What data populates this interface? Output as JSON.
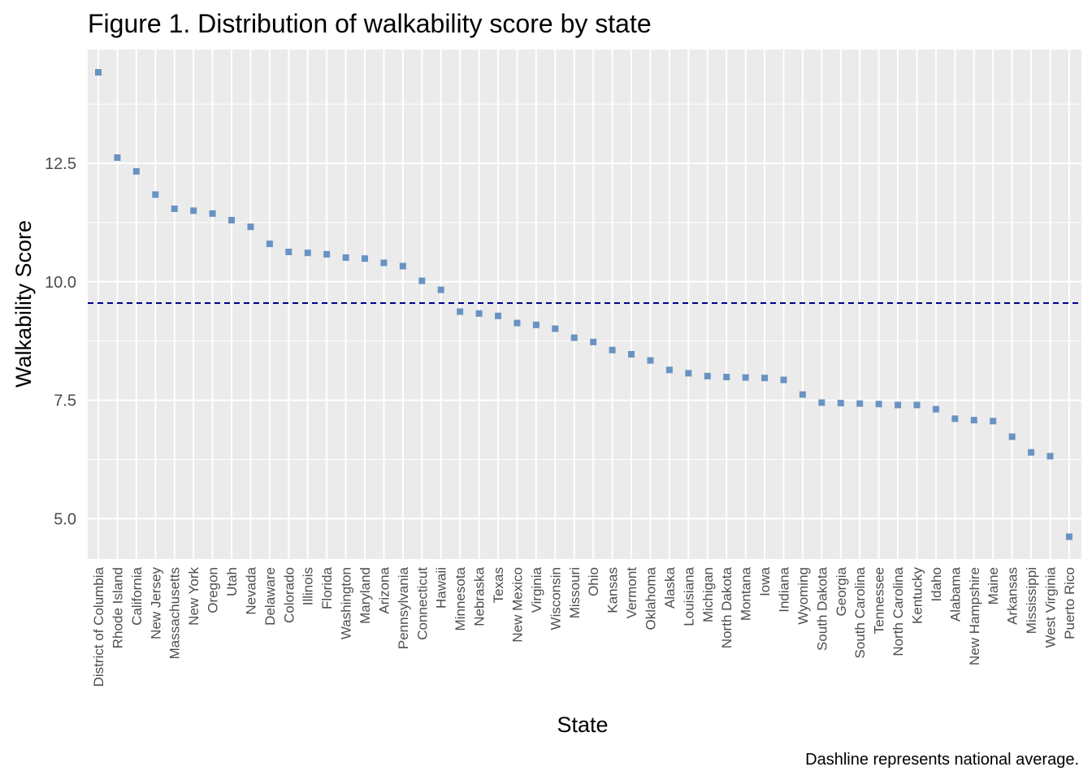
{
  "chart_data": {
    "type": "scatter",
    "title": "Figure 1. Distribution of walkability score by state",
    "xlabel": "State",
    "ylabel": "Walkability Score",
    "caption": "Dashline represents national average.",
    "reference_line": {
      "y": 9.55,
      "style": "dashed",
      "color": "#00008b"
    },
    "ylim": [
      4.15,
      14.9
    ],
    "yticks": [
      "5.0",
      "7.5",
      "10.0",
      "12.5"
    ],
    "ytick_values": [
      5.0,
      7.5,
      10.0,
      12.5
    ],
    "grid": true,
    "point_color": "#6a93c3",
    "panel_color": "#ebebeb",
    "categories": [
      "District of Columbia",
      "Rhode Island",
      "California",
      "New Jersey",
      "Massachusetts",
      "New York",
      "Oregon",
      "Utah",
      "Nevada",
      "Delaware",
      "Colorado",
      "Illinois",
      "Florida",
      "Washington",
      "Maryland",
      "Arizona",
      "Pennsylvania",
      "Connecticut",
      "Hawaii",
      "Minnesota",
      "Nebraska",
      "Texas",
      "New Mexico",
      "Virginia",
      "Wisconsin",
      "Missouri",
      "Ohio",
      "Kansas",
      "Vermont",
      "Oklahoma",
      "Alaska",
      "Louisiana",
      "Michigan",
      "North Dakota",
      "Montana",
      "Iowa",
      "Indiana",
      "Wyoming",
      "South Dakota",
      "Georgia",
      "South Carolina",
      "Tennessee",
      "North Carolina",
      "Kentucky",
      "Idaho",
      "Alabama",
      "New Hampshire",
      "Maine",
      "Arkansas",
      "Mississippi",
      "West Virginia",
      "Puerto Rico"
    ],
    "values": [
      14.42,
      12.62,
      12.33,
      11.84,
      11.54,
      11.5,
      11.44,
      11.3,
      11.16,
      10.8,
      10.63,
      10.61,
      10.58,
      10.51,
      10.49,
      10.4,
      10.33,
      10.02,
      9.83,
      9.37,
      9.33,
      9.28,
      9.13,
      9.09,
      9.01,
      8.82,
      8.73,
      8.56,
      8.47,
      8.34,
      8.14,
      8.07,
      8.01,
      7.99,
      7.98,
      7.97,
      7.93,
      7.62,
      7.45,
      7.44,
      7.43,
      7.42,
      7.4,
      7.4,
      7.31,
      7.11,
      7.08,
      7.06,
      6.73,
      6.4,
      6.32,
      4.62
    ]
  }
}
